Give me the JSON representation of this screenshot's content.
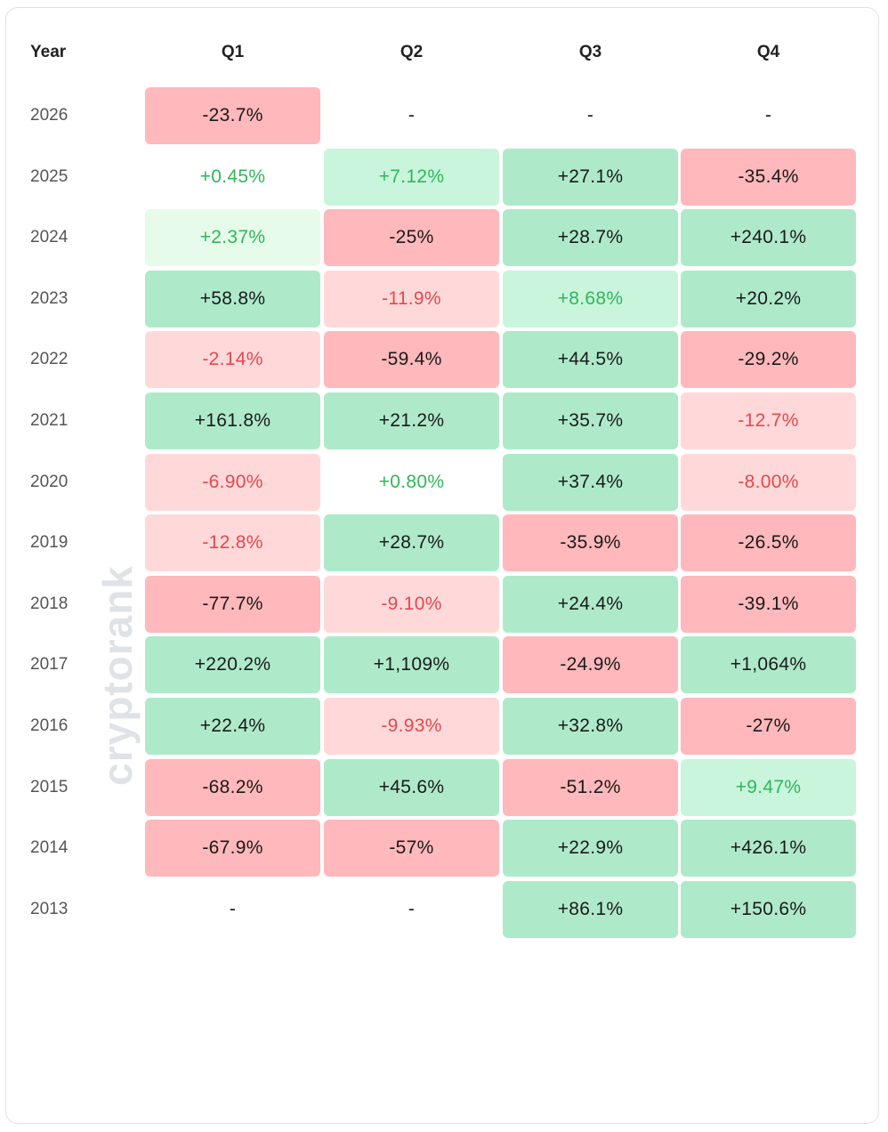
{
  "table": {
    "header": [
      "Year",
      "Q1",
      "Q2",
      "Q3",
      "Q4"
    ],
    "rows": [
      [
        "2026",
        "-23.7%",
        "-",
        "-",
        "-"
      ],
      [
        "2025",
        "+0.45%",
        "+7.12%",
        "+27.1%",
        "-35.4%"
      ],
      [
        "2024",
        "+2.37%",
        "-25%",
        "+28.7%",
        "+240.1%"
      ],
      [
        "2023",
        "+58.8%",
        "-11.9%",
        "+8.68%",
        "+20.2%"
      ],
      [
        "2022",
        "-2.14%",
        "-59.4%",
        "+44.5%",
        "-29.2%"
      ],
      [
        "2021",
        "+161.8%",
        "+21.2%",
        "+35.7%",
        "-12.7%"
      ],
      [
        "2020",
        "-6.90%",
        "+0.80%",
        "+37.4%",
        "-8.00%"
      ],
      [
        "2019",
        "-12.8%",
        "+28.7%",
        "-35.9%",
        "-26.5%"
      ],
      [
        "2018",
        "-77.7%",
        "-9.10%",
        "+24.4%",
        "-39.1%"
      ],
      [
        "2017",
        "+220.2%",
        "+1,109%",
        "-24.9%",
        "+1,064%"
      ],
      [
        "2016",
        "+22.4%",
        "-9.93%",
        "+32.8%",
        "-27%"
      ],
      [
        "2015",
        "-68.2%",
        "+45.6%",
        "-51.2%",
        "+9.47%"
      ],
      [
        "2014",
        "-67.9%",
        "-57%",
        "+22.9%",
        "+426.1%"
      ],
      [
        "2013",
        "-",
        "-",
        "+86.1%",
        "+150.6%"
      ]
    ]
  },
  "watermark": "cryptorank"
}
